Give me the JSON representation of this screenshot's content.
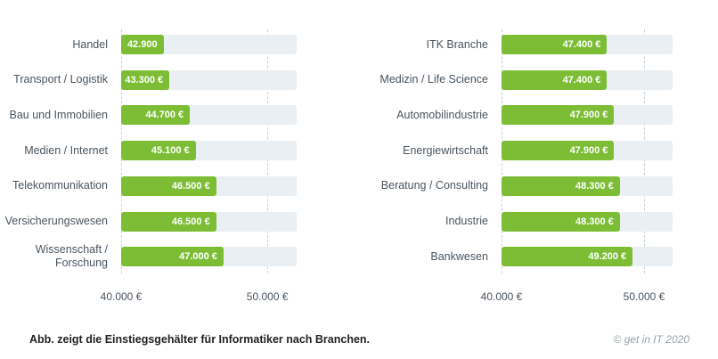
{
  "chart_data": [
    {
      "type": "bar",
      "orientation": "horizontal",
      "categories": [
        "Handel",
        "Transport / Logistik",
        "Bau und Immobilien",
        "Medien / Internet",
        "Telekommunikation",
        "Versicherungswesen",
        "Wissenschaft / Forschung"
      ],
      "values": [
        42900,
        43300,
        44700,
        45100,
        46500,
        46500,
        47000
      ],
      "value_labels": [
        "42.900 €",
        "43.300 €",
        "44.700 €",
        "45.100 €",
        "46.500 €",
        "46.500 €",
        "47.000 €"
      ],
      "color": "#7cbd35",
      "track_color": "#e9eff3",
      "xlim": [
        40000,
        52000
      ],
      "xticks": [
        {
          "value": 40000,
          "label": "40.000 €"
        },
        {
          "value": 50000,
          "label": "50.000 €"
        }
      ]
    },
    {
      "type": "bar",
      "orientation": "horizontal",
      "categories": [
        "ITK Branche",
        "Medizin / Life Science",
        "Automobilindustrie",
        "Energiewirtschaft",
        "Beratung / Consulting",
        "Industrie",
        "Bankwesen"
      ],
      "values": [
        47400,
        47400,
        47900,
        47900,
        48300,
        48300,
        49200
      ],
      "value_labels": [
        "47.400 €",
        "47.400 €",
        "47.900 €",
        "47.900 €",
        "48.300 €",
        "48.300 €",
        "49.200 €"
      ],
      "color": "#7cbd35",
      "track_color": "#e9eff3",
      "xlim": [
        40000,
        52000
      ],
      "xticks": [
        {
          "value": 40000,
          "label": "40.000 €"
        },
        {
          "value": 50000,
          "label": "50.000 €"
        }
      ]
    }
  ],
  "caption": "Abb. zeigt die Einstiegsgehälter für Informatiker nach Branchen.",
  "credit": "© get in IT 2020"
}
